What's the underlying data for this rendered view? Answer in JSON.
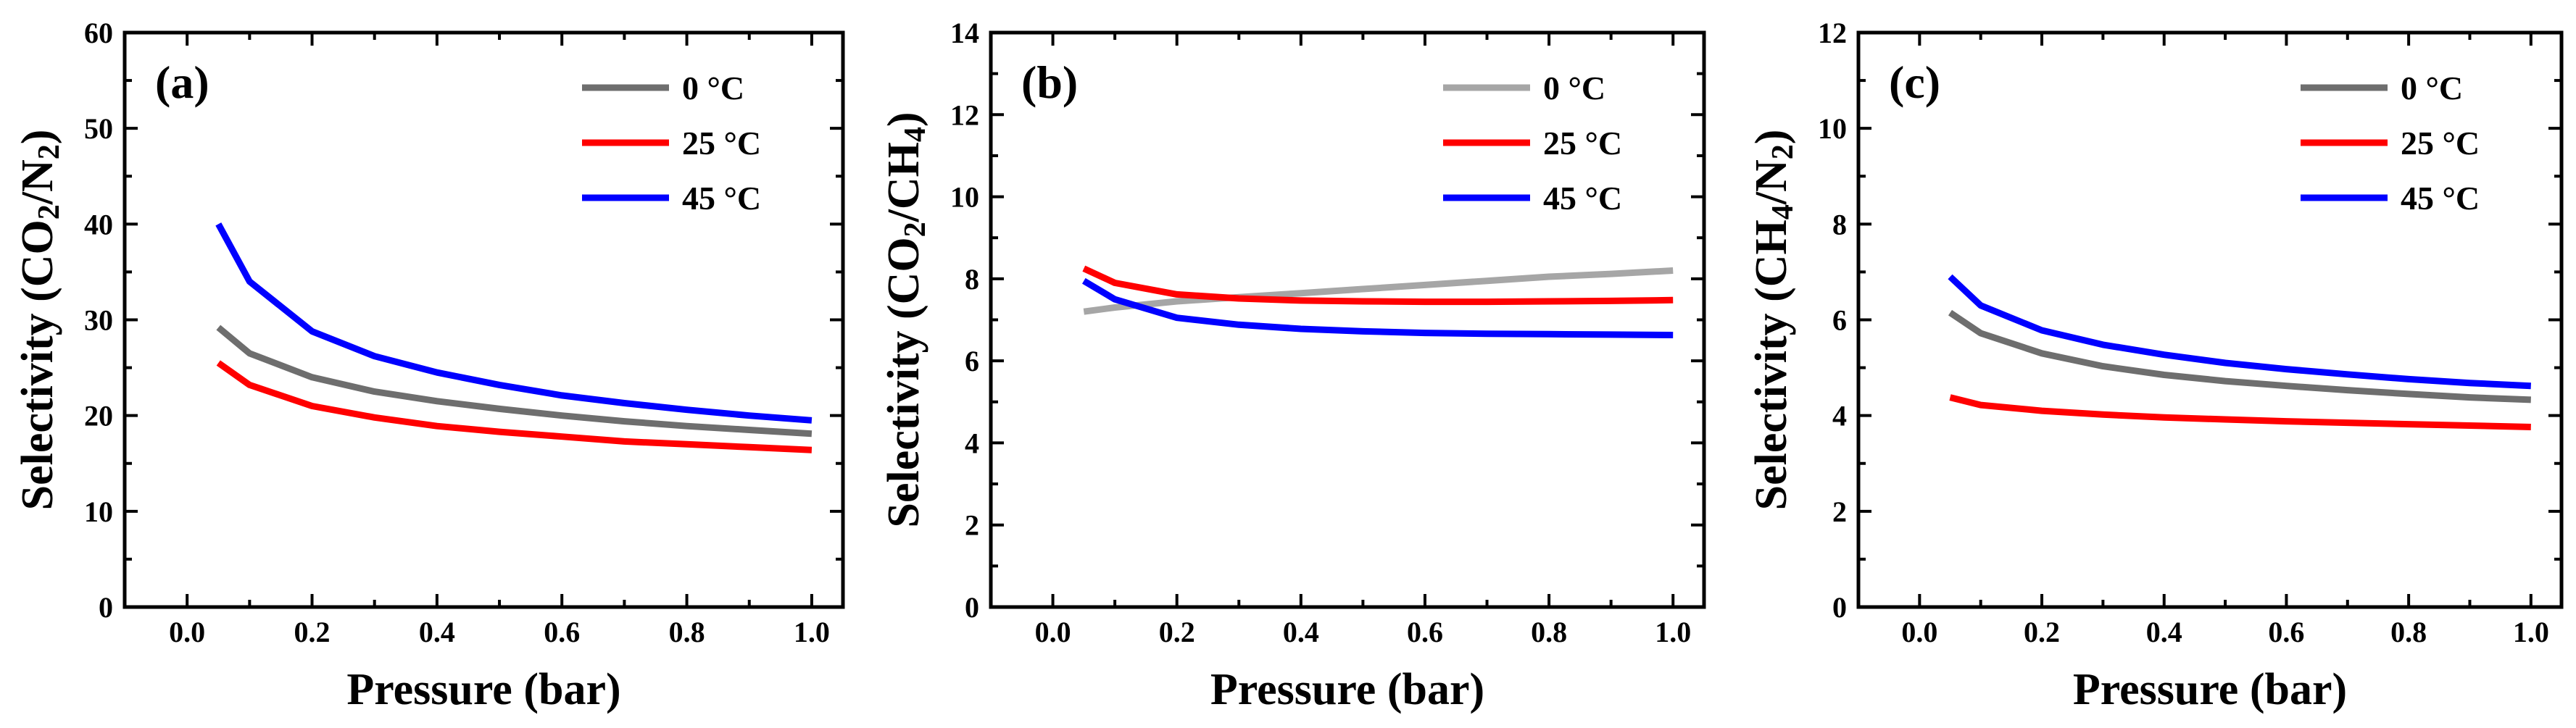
{
  "chart_data": [
    {
      "type": "line",
      "panel_label": "(a)",
      "xlabel": "Pressure (bar)",
      "ylabel": "Selectivity (CO2/N2)",
      "ylabel_parts": [
        [
          "Selectivity (CO",
          false
        ],
        [
          "2",
          true
        ],
        [
          "/N",
          false
        ],
        [
          "2",
          true
        ],
        [
          ")",
          false
        ]
      ],
      "xlim": [
        -0.1,
        1.05
      ],
      "ylim": [
        0,
        60
      ],
      "xticks": [
        0.0,
        0.2,
        0.4,
        0.6,
        0.8,
        1.0
      ],
      "xtick_labels": [
        "0.0",
        "0.2",
        "0.4",
        "0.6",
        "0.8",
        "1.0"
      ],
      "yticks": [
        0,
        10,
        20,
        30,
        40,
        50,
        60
      ],
      "ytick_labels": [
        "0",
        "10",
        "20",
        "30",
        "40",
        "50",
        "60"
      ],
      "legend_position": "top-right",
      "series": [
        {
          "name": "0 °C",
          "color": "#6e6e6e",
          "x": [
            0.05,
            0.1,
            0.2,
            0.3,
            0.4,
            0.5,
            0.6,
            0.7,
            0.8,
            0.9,
            1.0
          ],
          "y": [
            29.2,
            26.5,
            24.0,
            22.5,
            21.5,
            20.7,
            20.0,
            19.4,
            18.9,
            18.5,
            18.1
          ]
        },
        {
          "name": "25 °C",
          "color": "#ff0000",
          "x": [
            0.05,
            0.1,
            0.2,
            0.3,
            0.4,
            0.5,
            0.6,
            0.7,
            0.8,
            0.9,
            1.0
          ],
          "y": [
            25.5,
            23.2,
            21.0,
            19.8,
            18.9,
            18.3,
            17.8,
            17.3,
            17.0,
            16.7,
            16.4
          ]
        },
        {
          "name": "45 °C",
          "color": "#0000ff",
          "x": [
            0.05,
            0.1,
            0.2,
            0.3,
            0.4,
            0.5,
            0.6,
            0.7,
            0.8,
            0.9,
            1.0
          ],
          "y": [
            40.0,
            34.0,
            28.8,
            26.2,
            24.5,
            23.2,
            22.1,
            21.3,
            20.6,
            20.0,
            19.5
          ]
        }
      ]
    },
    {
      "type": "line",
      "panel_label": "(b)",
      "xlabel": "Pressure (bar)",
      "ylabel": "Selectivity (CO2/CH4)",
      "ylabel_parts": [
        [
          "Selectivity (CO",
          false
        ],
        [
          "2",
          true
        ],
        [
          "/CH",
          false
        ],
        [
          "4",
          true
        ],
        [
          ")",
          false
        ]
      ],
      "xlim": [
        -0.1,
        1.05
      ],
      "ylim": [
        0,
        14
      ],
      "xticks": [
        0.0,
        0.2,
        0.4,
        0.6,
        0.8,
        1.0
      ],
      "xtick_labels": [
        "0.0",
        "0.2",
        "0.4",
        "0.6",
        "0.8",
        "1.0"
      ],
      "yticks": [
        0,
        2,
        4,
        6,
        8,
        10,
        12,
        14
      ],
      "ytick_labels": [
        "0",
        "2",
        "4",
        "6",
        "8",
        "10",
        "12",
        "14"
      ],
      "legend_position": "top-right",
      "series": [
        {
          "name": "0 °C",
          "color": "#a6a6a6",
          "x": [
            0.05,
            0.1,
            0.2,
            0.3,
            0.4,
            0.5,
            0.6,
            0.7,
            0.8,
            0.9,
            1.0
          ],
          "y": [
            7.2,
            7.3,
            7.45,
            7.55,
            7.65,
            7.75,
            7.85,
            7.95,
            8.05,
            8.12,
            8.2
          ]
        },
        {
          "name": "25 °C",
          "color": "#ff0000",
          "x": [
            0.05,
            0.1,
            0.2,
            0.3,
            0.4,
            0.5,
            0.6,
            0.7,
            0.8,
            0.9,
            1.0
          ],
          "y": [
            8.25,
            7.9,
            7.62,
            7.52,
            7.47,
            7.45,
            7.44,
            7.44,
            7.45,
            7.46,
            7.48
          ]
        },
        {
          "name": "45 °C",
          "color": "#0000ff",
          "x": [
            0.05,
            0.1,
            0.2,
            0.3,
            0.4,
            0.5,
            0.6,
            0.7,
            0.8,
            0.9,
            1.0
          ],
          "y": [
            7.95,
            7.5,
            7.05,
            6.88,
            6.78,
            6.72,
            6.68,
            6.66,
            6.65,
            6.64,
            6.63
          ]
        }
      ]
    },
    {
      "type": "line",
      "panel_label": "(c)",
      "xlabel": "Pressure (bar)",
      "ylabel": "Selectivity (CH4/N2)",
      "ylabel_parts": [
        [
          "Selectivity (CH",
          false
        ],
        [
          "4",
          true
        ],
        [
          "/N",
          false
        ],
        [
          "2",
          true
        ],
        [
          ")",
          false
        ]
      ],
      "xlim": [
        -0.1,
        1.05
      ],
      "ylim": [
        0,
        12
      ],
      "xticks": [
        0.0,
        0.2,
        0.4,
        0.6,
        0.8,
        1.0
      ],
      "xtick_labels": [
        "0.0",
        "0.2",
        "0.4",
        "0.6",
        "0.8",
        "1.0"
      ],
      "yticks": [
        0,
        2,
        4,
        6,
        8,
        10,
        12
      ],
      "ytick_labels": [
        "0",
        "2",
        "4",
        "6",
        "8",
        "10",
        "12"
      ],
      "legend_position": "top-right",
      "series": [
        {
          "name": "0 °C",
          "color": "#6e6e6e",
          "x": [
            0.05,
            0.1,
            0.2,
            0.3,
            0.4,
            0.5,
            0.6,
            0.7,
            0.8,
            0.9,
            1.0
          ],
          "y": [
            6.15,
            5.72,
            5.3,
            5.03,
            4.85,
            4.72,
            4.62,
            4.53,
            4.45,
            4.38,
            4.33
          ]
        },
        {
          "name": "25 °C",
          "color": "#ff0000",
          "x": [
            0.05,
            0.1,
            0.2,
            0.3,
            0.4,
            0.5,
            0.6,
            0.7,
            0.8,
            0.9,
            1.0
          ],
          "y": [
            4.38,
            4.22,
            4.1,
            4.02,
            3.96,
            3.92,
            3.88,
            3.85,
            3.82,
            3.79,
            3.76
          ]
        },
        {
          "name": "45 °C",
          "color": "#0000ff",
          "x": [
            0.05,
            0.1,
            0.2,
            0.3,
            0.4,
            0.5,
            0.6,
            0.7,
            0.8,
            0.9,
            1.0
          ],
          "y": [
            6.9,
            6.3,
            5.78,
            5.48,
            5.27,
            5.1,
            4.97,
            4.86,
            4.76,
            4.68,
            4.62
          ]
        }
      ]
    }
  ]
}
